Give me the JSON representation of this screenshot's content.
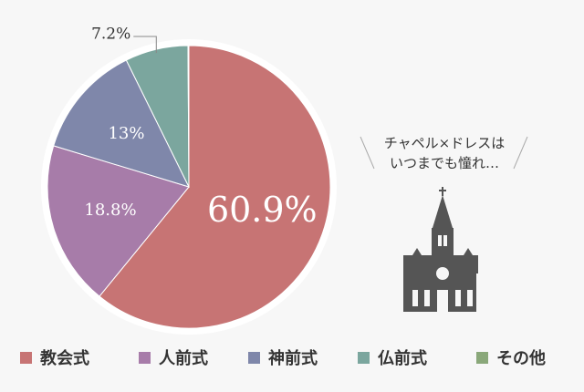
{
  "chart_data": {
    "type": "pie",
    "categories": [
      "教会式",
      "人前式",
      "神前式",
      "仏前式",
      "その他"
    ],
    "values": [
      60.9,
      18.8,
      13,
      7.2,
      0.1
    ],
    "value_labels": [
      "60.9%",
      "18.8%",
      "13%",
      "7.2%",
      null
    ],
    "colors": [
      "#c77474",
      "#a77ca9",
      "#7f87aa",
      "#7ba69e",
      "#8aa87a"
    ],
    "annotation": [
      "チャペル×ドレスは",
      "いつまでも憧れ…"
    ]
  }
}
